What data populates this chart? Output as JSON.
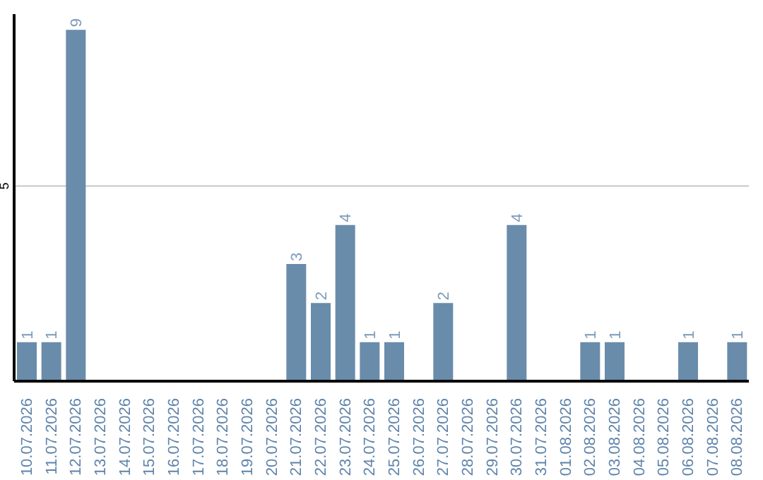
{
  "chart_data": {
    "type": "bar",
    "categories": [
      "10.07.2026",
      "11.07.2026",
      "12.07.2026",
      "13.07.2026",
      "14.07.2026",
      "15.07.2026",
      "16.07.2026",
      "17.07.2026",
      "18.07.2026",
      "19.07.2026",
      "20.07.2026",
      "21.07.2026",
      "22.07.2026",
      "23.07.2026",
      "24.07.2026",
      "25.07.2026",
      "26.07.2026",
      "27.07.2026",
      "28.07.2026",
      "29.07.2026",
      "30.07.2026",
      "31.07.2026",
      "01.08.2026",
      "02.08.2026",
      "03.08.2026",
      "04.08.2026",
      "05.08.2026",
      "06.08.2026",
      "07.08.2026",
      "08.08.2026"
    ],
    "values": [
      1,
      1,
      9,
      0,
      0,
      0,
      0,
      0,
      0,
      0,
      0,
      3,
      2,
      4,
      1,
      1,
      0,
      2,
      0,
      0,
      4,
      0,
      0,
      1,
      1,
      0,
      0,
      1,
      0,
      1
    ],
    "value_labels": [
      "1",
      "1",
      "9",
      null,
      null,
      null,
      null,
      null,
      null,
      null,
      null,
      "3",
      "2",
      "4",
      "1",
      "1",
      null,
      "2",
      null,
      null,
      "4",
      null,
      null,
      "1",
      "1",
      null,
      null,
      "1",
      null,
      "1"
    ],
    "color": "#6a8cab",
    "ylim": [
      0,
      9.4
    ],
    "yticks": [
      5
    ],
    "grid": "y"
  }
}
